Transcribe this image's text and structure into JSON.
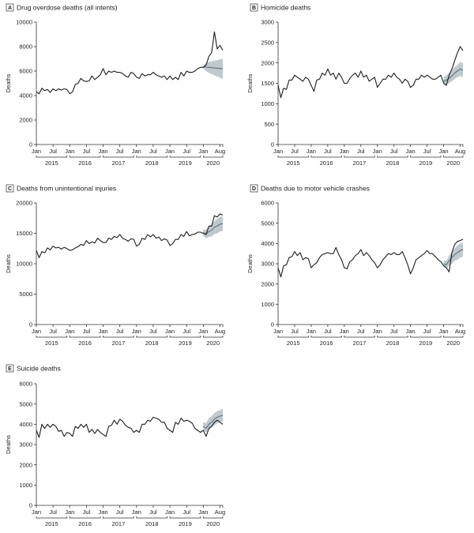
{
  "chart_data": [
    {
      "panel": "A",
      "title": "Drug overdose deaths (all intents)",
      "type": "line",
      "ylabel": "Deaths",
      "ylim": [
        0,
        10000
      ],
      "yticks": [
        0,
        2000,
        4000,
        6000,
        8000,
        10000
      ],
      "month_ticks": [
        "Jan",
        "Jul",
        "Jan",
        "Jul",
        "Jan",
        "Jul",
        "Jan",
        "Jul",
        "Jan",
        "Jul",
        "Jan",
        "Aug"
      ],
      "years": [
        "2015",
        "2016",
        "2017",
        "2018",
        "2019",
        "2020"
      ],
      "x_start": "2015-01",
      "x_end": "2020-08",
      "series": [
        {
          "values": [
            4300,
            4150,
            4600,
            4400,
            4500,
            4250,
            4550,
            4400,
            4550,
            4450,
            4550,
            4500,
            4150,
            4300,
            4900,
            5000,
            5400,
            5200,
            5150,
            5200,
            5600,
            5300,
            5500,
            5700,
            6200,
            5700,
            6000,
            5900,
            6000,
            5900,
            5900,
            5800,
            5600,
            5500,
            5900,
            5800,
            5500,
            5400,
            5800,
            5600,
            5700,
            5700,
            5900,
            5700,
            5600,
            5500,
            5600,
            5300,
            5600,
            5300,
            5500,
            5300,
            5900,
            5600,
            6000,
            5900,
            5900,
            6000,
            6200,
            6300,
            6300,
            6500,
            7200,
            7500,
            9200,
            7800,
            8100,
            7700
          ]
        }
      ],
      "expected": {
        "start": "2020-01",
        "values": [
          6350,
          6320,
          6300,
          6280,
          6260,
          6230,
          6210,
          6190
        ],
        "lower": [
          6200,
          6000,
          5850,
          5750,
          5650,
          5550,
          5450,
          5350
        ],
        "upper": [
          6500,
          6650,
          6750,
          6800,
          6850,
          6900,
          6950,
          7000
        ]
      }
    },
    {
      "panel": "B",
      "title": "Homicide deaths",
      "type": "line",
      "ylabel": "Deaths",
      "ylim": [
        0,
        3000
      ],
      "yticks": [
        0,
        500,
        1000,
        1500,
        2000,
        2500,
        3000
      ],
      "month_ticks": [
        "Jan",
        "Jul",
        "Jan",
        "Jul",
        "Jan",
        "Jul",
        "Jan",
        "Jul",
        "Jan",
        "Jul",
        "Jan",
        "Aug"
      ],
      "years": [
        "2015",
        "2016",
        "2017",
        "2018",
        "2019",
        "2020"
      ],
      "x_start": "2015-01",
      "x_end": "2020-08",
      "series": [
        {
          "values": [
            1450,
            1150,
            1380,
            1350,
            1580,
            1580,
            1700,
            1650,
            1600,
            1550,
            1650,
            1600,
            1450,
            1300,
            1580,
            1600,
            1750,
            1700,
            1850,
            1700,
            1750,
            1600,
            1750,
            1650,
            1500,
            1500,
            1620,
            1700,
            1750,
            1650,
            1800,
            1650,
            1700,
            1550,
            1600,
            1650,
            1400,
            1500,
            1600,
            1600,
            1700,
            1650,
            1750,
            1650,
            1600,
            1500,
            1600,
            1550,
            1400,
            1450,
            1600,
            1600,
            1700,
            1650,
            1700,
            1650,
            1600,
            1600,
            1650,
            1700,
            1500,
            1450,
            1700,
            1850,
            2050,
            2250,
            2400,
            2300
          ]
        }
      ],
      "expected": {
        "start": "2020-01",
        "values": [
          1550,
          1580,
          1620,
          1680,
          1750,
          1800,
          1850,
          1820
        ],
        "lower": [
          1450,
          1470,
          1500,
          1550,
          1600,
          1650,
          1680,
          1650
        ],
        "upper": [
          1650,
          1700,
          1760,
          1820,
          1900,
          1950,
          2020,
          2000
        ]
      }
    },
    {
      "panel": "C",
      "title": "Deaths from unintentional injuries",
      "type": "line",
      "ylabel": "Deaths",
      "ylim": [
        0,
        20000
      ],
      "yticks": [
        0,
        5000,
        10000,
        15000,
        20000
      ],
      "month_ticks": [
        "Jan",
        "Jul",
        "Jan",
        "Jul",
        "Jan",
        "Jul",
        "Jan",
        "Jul",
        "Jan",
        "Jul",
        "Jan",
        "Aug"
      ],
      "years": [
        "2015",
        "2016",
        "2017",
        "2018",
        "2019",
        "2020"
      ],
      "x_start": "2015-01",
      "x_end": "2020-08",
      "series": [
        {
          "values": [
            12200,
            11000,
            12000,
            11800,
            12600,
            12300,
            12900,
            12600,
            12700,
            12400,
            12700,
            12500,
            12200,
            12300,
            12600,
            12800,
            13200,
            13000,
            13800,
            13300,
            13600,
            13400,
            14200,
            13800,
            13500,
            13500,
            14200,
            14000,
            14500,
            14300,
            14800,
            14200,
            14000,
            13700,
            14100,
            14000,
            12900,
            13200,
            14200,
            14000,
            14800,
            14400,
            14800,
            14200,
            14400,
            13800,
            14100,
            13900,
            13000,
            13300,
            14000,
            14000,
            14800,
            14500,
            15300,
            14600,
            14800,
            14900,
            15200,
            15200,
            15000,
            14800,
            16200,
            16200,
            17900,
            17700,
            18200,
            18000
          ]
        }
      ],
      "expected": {
        "start": "2020-01",
        "values": [
          15100,
          14900,
          15300,
          15500,
          16000,
          16200,
          16500,
          16600
        ],
        "lower": [
          14600,
          14200,
          14400,
          14500,
          14900,
          15000,
          15300,
          15400
        ],
        "upper": [
          15600,
          15600,
          16200,
          16500,
          17000,
          17400,
          17700,
          17800
        ]
      }
    },
    {
      "panel": "D",
      "title": "Deaths due to motor vehicle crashes",
      "type": "line",
      "ylabel": "Deaths",
      "ylim": [
        0,
        6000
      ],
      "yticks": [
        0,
        1000,
        2000,
        3000,
        4000,
        5000,
        6000
      ],
      "month_ticks": [
        "Jan",
        "Jul",
        "Jan",
        "Jul",
        "Jan",
        "Jul",
        "Jan",
        "Jul",
        "Jan",
        "Jul",
        "Jan",
        "Aug"
      ],
      "years": [
        "2015",
        "2016",
        "2017",
        "2018",
        "2019",
        "2020"
      ],
      "x_start": "2015-01",
      "x_end": "2020-08",
      "series": [
        {
          "values": [
            2800,
            2350,
            2900,
            2950,
            3300,
            3350,
            3600,
            3400,
            3550,
            3200,
            3300,
            3250,
            2800,
            2950,
            3050,
            3300,
            3450,
            3500,
            3550,
            3500,
            3500,
            3800,
            3450,
            3200,
            2800,
            2750,
            3100,
            3200,
            3400,
            3500,
            3700,
            3400,
            3550,
            3400,
            3200,
            3050,
            2800,
            2950,
            3200,
            3350,
            3500,
            3450,
            3550,
            3450,
            3450,
            3600,
            3300,
            2950,
            2500,
            2800,
            3200,
            3300,
            3400,
            3500,
            3650,
            3500,
            3500,
            3350,
            3200,
            3100,
            2900,
            2800,
            2600,
            3550,
            3950,
            4100,
            4150,
            4200
          ]
        }
      ],
      "expected": {
        "start": "2020-01",
        "values": [
          3000,
          2950,
          3150,
          3300,
          3450,
          3550,
          3650,
          3700
        ],
        "lower": [
          2850,
          2750,
          2900,
          3000,
          3150,
          3200,
          3300,
          3350
        ],
        "upper": [
          3150,
          3150,
          3400,
          3600,
          3750,
          3900,
          4000,
          4050
        ]
      }
    },
    {
      "panel": "E",
      "title": "Suicide deaths",
      "type": "line",
      "ylabel": "Deaths",
      "ylim": [
        0,
        6000
      ],
      "yticks": [
        0,
        1000,
        2000,
        3000,
        4000,
        5000,
        6000
      ],
      "month_ticks": [
        "Jan",
        "Jul",
        "Jan",
        "Jul",
        "Jan",
        "Jul",
        "Jan",
        "Jul",
        "Jan",
        "Jul",
        "Jan",
        "Aug"
      ],
      "years": [
        "2015",
        "2016",
        "2017",
        "2018",
        "2019",
        "2020"
      ],
      "x_start": "2015-01",
      "x_end": "2020-08",
      "series": [
        {
          "values": [
            3700,
            3350,
            4000,
            3800,
            4000,
            3850,
            4000,
            3900,
            3650,
            3700,
            3400,
            3600,
            3550,
            3400,
            3900,
            3800,
            4000,
            3850,
            4000,
            3600,
            3750,
            3550,
            3750,
            3600,
            3500,
            3400,
            3900,
            3950,
            4200,
            4000,
            4250,
            4150,
            3950,
            3850,
            3800,
            3600,
            3700,
            3600,
            4000,
            4000,
            4200,
            4150,
            4350,
            4300,
            4250,
            4100,
            4100,
            3800,
            3700,
            3600,
            4100,
            4000,
            4300,
            4150,
            4200,
            4150,
            4050,
            3800,
            3700,
            3600,
            3700,
            3400,
            3800,
            3900,
            4100,
            4200,
            4100,
            4000
          ]
        }
      ],
      "expected": {
        "start": "2020-01",
        "values": [
          3900,
          3800,
          4000,
          4100,
          4250,
          4350,
          4400,
          4450
        ],
        "lower": [
          3700,
          3600,
          3750,
          3850,
          3950,
          4050,
          4100,
          4150
        ],
        "upper": [
          4100,
          4050,
          4300,
          4400,
          4550,
          4650,
          4700,
          4750
        ]
      }
    }
  ]
}
